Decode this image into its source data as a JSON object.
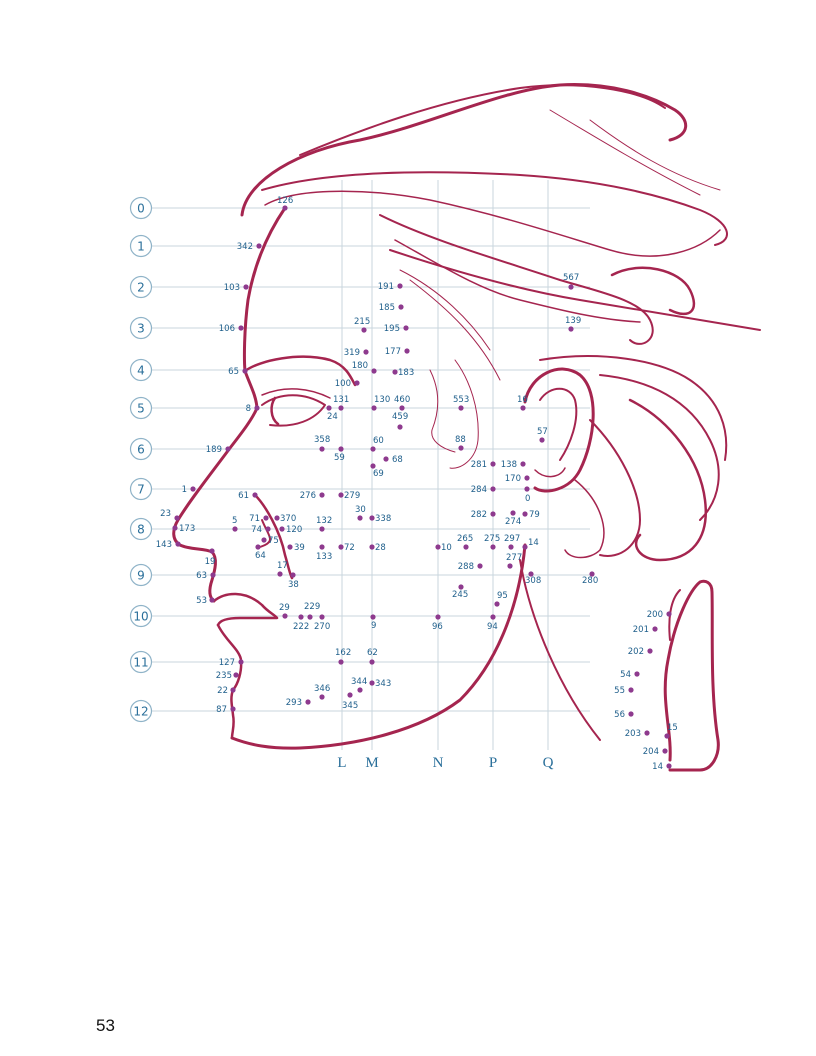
{
  "page_number": "53",
  "colors": {
    "outline": "#a5254f",
    "point": "#8e3a8e",
    "label": "#1f5f8b",
    "grid": "#c9d6de"
  },
  "rows": [
    "0",
    "1",
    "2",
    "3",
    "4",
    "5",
    "6",
    "7",
    "8",
    "9",
    "10",
    "11",
    "12"
  ],
  "columns": [
    "L",
    "M",
    "N",
    "P",
    "Q"
  ],
  "face_points": [
    {
      "label": "126"
    },
    {
      "label": "342"
    },
    {
      "label": "103"
    },
    {
      "label": "106"
    },
    {
      "label": "65"
    },
    {
      "label": "8"
    },
    {
      "label": "189"
    },
    {
      "label": "1"
    },
    {
      "label": "23"
    },
    {
      "label": "173"
    },
    {
      "label": "143"
    },
    {
      "label": "19"
    },
    {
      "label": "63"
    },
    {
      "label": "53"
    },
    {
      "label": "127"
    },
    {
      "label": "235"
    },
    {
      "label": "22"
    },
    {
      "label": "87"
    },
    {
      "label": "191"
    },
    {
      "label": "185"
    },
    {
      "label": "195"
    },
    {
      "label": "215"
    },
    {
      "label": "319"
    },
    {
      "label": "177"
    },
    {
      "label": "180"
    },
    {
      "label": "183"
    },
    {
      "label": "100"
    },
    {
      "label": "131"
    },
    {
      "label": "24"
    },
    {
      "label": "130"
    },
    {
      "label": "460"
    },
    {
      "label": "459"
    },
    {
      "label": "553"
    },
    {
      "label": "16"
    },
    {
      "label": "57"
    },
    {
      "label": "358"
    },
    {
      "label": "59"
    },
    {
      "label": "60"
    },
    {
      "label": "68"
    },
    {
      "label": "69"
    },
    {
      "label": "88"
    },
    {
      "label": "281"
    },
    {
      "label": "138"
    },
    {
      "label": "170"
    },
    {
      "label": "284"
    },
    {
      "label": "0"
    },
    {
      "label": "276"
    },
    {
      "label": "279"
    },
    {
      "label": "61"
    },
    {
      "label": "30"
    },
    {
      "label": "338"
    },
    {
      "label": "282"
    },
    {
      "label": "274"
    },
    {
      "label": "79"
    },
    {
      "label": "71"
    },
    {
      "label": "370"
    },
    {
      "label": "5"
    },
    {
      "label": "74"
    },
    {
      "label": "120"
    },
    {
      "label": "132"
    },
    {
      "label": "75"
    },
    {
      "label": "64"
    },
    {
      "label": "39"
    },
    {
      "label": "72"
    },
    {
      "label": "133"
    },
    {
      "label": "28"
    },
    {
      "label": "10"
    },
    {
      "label": "265"
    },
    {
      "label": "275"
    },
    {
      "label": "297"
    },
    {
      "label": "14"
    },
    {
      "label": "17"
    },
    {
      "label": "38"
    },
    {
      "label": "288"
    },
    {
      "label": "277"
    },
    {
      "label": "308"
    },
    {
      "label": "280"
    },
    {
      "label": "245"
    },
    {
      "label": "95"
    },
    {
      "label": "29"
    },
    {
      "label": "229"
    },
    {
      "label": "222"
    },
    {
      "label": "270"
    },
    {
      "label": "9"
    },
    {
      "label": "96"
    },
    {
      "label": "94"
    },
    {
      "label": "162"
    },
    {
      "label": "62"
    },
    {
      "label": "344"
    },
    {
      "label": "343"
    },
    {
      "label": "346"
    },
    {
      "label": "293"
    },
    {
      "label": "345"
    },
    {
      "label": "567"
    },
    {
      "label": "139"
    }
  ],
  "ear_points": [
    {
      "label": "200"
    },
    {
      "label": "201"
    },
    {
      "label": "202"
    },
    {
      "label": "54"
    },
    {
      "label": "55"
    },
    {
      "label": "56"
    },
    {
      "label": "203"
    },
    {
      "label": "15"
    },
    {
      "label": "204"
    },
    {
      "label": "14"
    }
  ]
}
